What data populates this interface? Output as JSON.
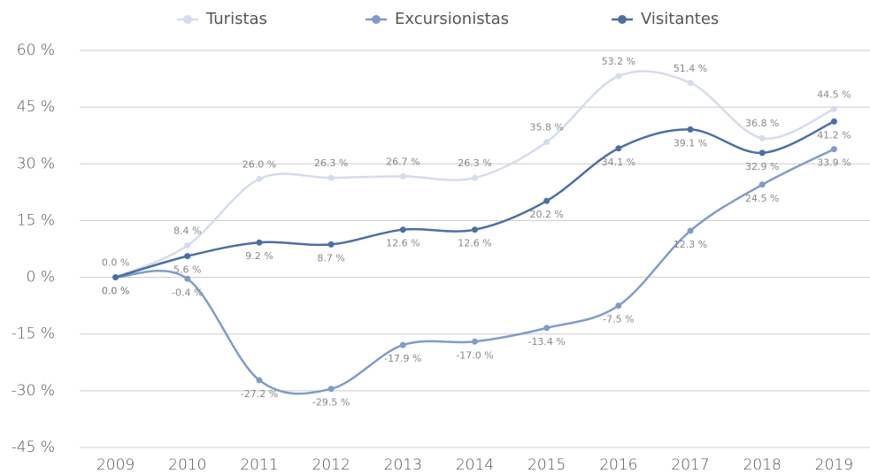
{
  "chart_data": {
    "type": "line",
    "categories": [
      "2009",
      "2010",
      "2011",
      "2012",
      "2013",
      "2014",
      "2015",
      "2016",
      "2017",
      "2018",
      "2019"
    ],
    "series": [
      {
        "name": "Turistas",
        "color": "#d5dcec",
        "values": [
          0.0,
          8.4,
          26.0,
          26.3,
          26.7,
          26.3,
          35.8,
          53.2,
          51.4,
          36.8,
          44.5
        ],
        "value_labels": [
          "0.0 %",
          "8.4 %",
          "26.0 %",
          "26.3 %",
          "26.7 %",
          "26.3 %",
          "35.8 %",
          "53.2 %",
          "51.4 %",
          "36.8 %",
          "44.5 %"
        ]
      },
      {
        "name": "Excursionistas",
        "color": "#7f9cc8",
        "values": [
          0.0,
          -0.4,
          -27.2,
          -29.5,
          -17.9,
          -17.0,
          -13.4,
          -7.5,
          12.3,
          24.5,
          33.9
        ],
        "value_labels": [
          "0.0 %",
          "-0.4 %",
          "-27.2 %",
          "-29.5 %",
          "-17.9 %",
          "-17.0 %",
          "-13.4 %",
          "-7.5 %",
          "12.3 %",
          "24.5 %",
          "33.9 %"
        ]
      },
      {
        "name": "Visitantes",
        "color": "#4a6fa5",
        "values": [
          0.0,
          5.6,
          9.2,
          8.7,
          12.6,
          12.6,
          20.2,
          34.1,
          39.1,
          32.9,
          41.2
        ],
        "value_labels": [
          "0.0 %",
          "5.6 %",
          "9.2 %",
          "8.7 %",
          "12.6 %",
          "12.6 %",
          "20.2 %",
          "34.1 %",
          "39.1 %",
          "32.9 %",
          "41.2 %"
        ]
      }
    ],
    "ylim": [
      -45,
      60
    ],
    "yticks": [
      {
        "value": -45,
        "label": "-45 %"
      },
      {
        "value": -30,
        "label": "-30 %"
      },
      {
        "value": -15,
        "label": "-15 %"
      },
      {
        "value": 0,
        "label": "0 %"
      },
      {
        "value": 15,
        "label": "15 %"
      },
      {
        "value": 30,
        "label": "30 %"
      },
      {
        "value": 45,
        "label": "45 %"
      },
      {
        "value": 60,
        "label": "60 %"
      }
    ],
    "grid": true,
    "legend": "top"
  }
}
